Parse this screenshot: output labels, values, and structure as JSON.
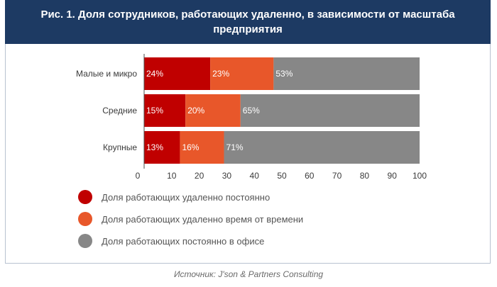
{
  "header": {
    "title": "Рис. 1. Доля сотрудников, работающих удаленно, в зависимости от масштаба предприятия"
  },
  "colors": {
    "remote_always": "#c00000",
    "remote_sometimes": "#e8572a",
    "office": "#878787",
    "header_bg": "#1d3a63"
  },
  "chart_data": {
    "type": "bar",
    "orientation": "horizontal",
    "stacked": true,
    "title": "Рис. 1. Доля сотрудников, работающих удаленно, в зависимости от масштаба предприятия",
    "categories": [
      "Малые и микро",
      "Средние",
      "Крупные"
    ],
    "series": [
      {
        "name": "Доля работающих удаленно постоянно",
        "values": [
          24,
          15,
          13
        ],
        "labels": [
          "24%",
          "15%",
          "13%"
        ],
        "color": "#c00000"
      },
      {
        "name": "Доля работающих удаленно время от времени",
        "values": [
          23,
          20,
          16
        ],
        "labels": [
          "23%",
          "20%",
          "16%"
        ],
        "color": "#e8572a"
      },
      {
        "name": "Доля работающих постоянно в офисе",
        "values": [
          53,
          65,
          71
        ],
        "labels": [
          "53%",
          "65%",
          "71%"
        ],
        "color": "#878787"
      }
    ],
    "xticks": [
      "0",
      "10",
      "20",
      "30",
      "40",
      "50",
      "60",
      "70",
      "80",
      "90",
      "100"
    ],
    "xlim": [
      0,
      100
    ],
    "xlabel": "",
    "ylabel": "",
    "legend": "bottom-left"
  },
  "source": "Источник: J'son & Partners Consulting"
}
